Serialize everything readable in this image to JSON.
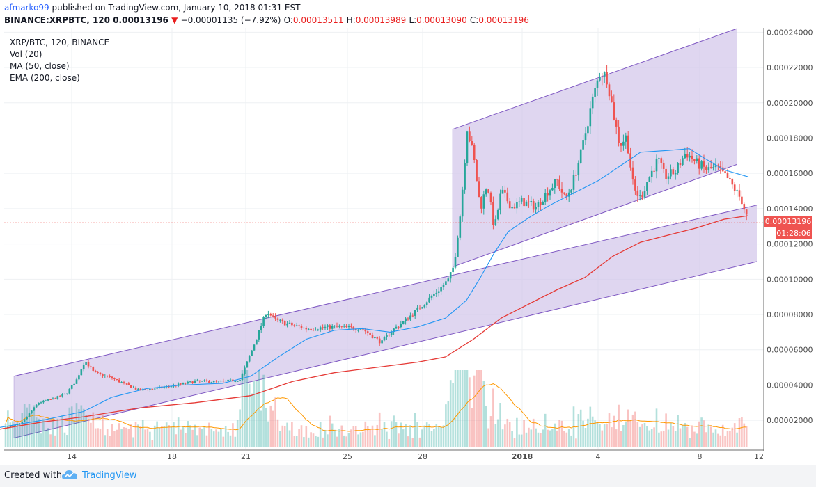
{
  "header": {
    "author": "afmarko99",
    "published_text": "published on TradingView.com, January 10, 2018 01:31 EST",
    "symbol": "BINANCE:XRPBTC, 120",
    "last": "0.00013196",
    "change_arrow": "▼",
    "change": "−0.00001135 (−7.92%)",
    "o_label": "O:",
    "o": "0.00013511",
    "h_label": "H:",
    "h": "0.00013989",
    "l_label": "L:",
    "l": "0.00013090",
    "c_label": "C:",
    "c": "0.00013196"
  },
  "legend": {
    "line1": "XRP/BTC, 120, BINANCE",
    "line2": "Vol (20)",
    "line3": "MA (50, close)",
    "line4": "EMA (200, close)"
  },
  "price_badge": {
    "value": "0.00013196",
    "countdown": "01:28:06"
  },
  "footer": {
    "created": "Created with",
    "brand": "TradingView"
  },
  "colors": {
    "up": "#26a69a",
    "down": "#ef5350",
    "ma": "#2196f3",
    "ema": "#e53935",
    "channel_fill": "#d1c4e9",
    "channel_line": "#7e57c2"
  },
  "chart_data": {
    "type": "candlestick",
    "symbol": "XRP/BTC",
    "interval": "120",
    "exchange": "BINANCE",
    "x_ticks": [
      "14",
      "18",
      "21",
      "25",
      "28",
      "2018",
      "4",
      "8",
      "12"
    ],
    "y_ticks": [
      "0.00002000",
      "0.00004000",
      "0.00006000",
      "0.00008000",
      "0.00010000",
      "0.00012000",
      "0.00014000",
      "0.00016000",
      "0.00018000",
      "0.00020000",
      "0.00022000",
      "0.00024000"
    ],
    "ylim": [
      3.5e-06,
      0.0002425
    ],
    "current_price": 0.00013196,
    "price_path_close": [
      [
        0,
        1.5e-05
      ],
      [
        30,
        1.8e-05
      ],
      [
        55,
        3e-05
      ],
      [
        75,
        3.2e-05
      ],
      [
        95,
        3.5e-05
      ],
      [
        110,
        4.3e-05
      ],
      [
        122,
        5.4e-05
      ],
      [
        135,
        4.7e-05
      ],
      [
        160,
        4.4e-05
      ],
      [
        200,
        3.7e-05
      ],
      [
        240,
        3.9e-05
      ],
      [
        280,
        4.2e-05
      ],
      [
        320,
        4.2e-05
      ],
      [
        345,
        4.3e-05
      ],
      [
        360,
        5.8e-05
      ],
      [
        383,
        8.2e-05
      ],
      [
        395,
        7.7e-05
      ],
      [
        410,
        7.5e-05
      ],
      [
        440,
        7.2e-05
      ],
      [
        480,
        7.3e-05
      ],
      [
        520,
        7.2e-05
      ],
      [
        548,
        6.4e-05
      ],
      [
        560,
        7e-05
      ],
      [
        580,
        7.6e-05
      ],
      [
        600,
        8.3e-05
      ],
      [
        625,
        9.2e-05
      ],
      [
        645,
        0.0001
      ],
      [
        652,
        0.000108
      ],
      [
        662,
        0.00014
      ],
      [
        671,
        0.000186
      ],
      [
        680,
        0.00017
      ],
      [
        690,
        0.00014
      ],
      [
        700,
        0.000155
      ],
      [
        710,
        0.000128
      ],
      [
        720,
        0.00015
      ],
      [
        735,
        0.000141
      ],
      [
        750,
        0.000144
      ],
      [
        770,
        0.000141
      ],
      [
        785,
        0.000149
      ],
      [
        800,
        0.000156
      ],
      [
        812,
        0.000145
      ],
      [
        822,
        0.000154
      ],
      [
        835,
        0.000172
      ],
      [
        850,
        0.0002
      ],
      [
        862,
        0.000218
      ],
      [
        872,
        0.000214
      ],
      [
        880,
        0.000196
      ],
      [
        890,
        0.000176
      ],
      [
        900,
        0.000181
      ],
      [
        910,
        0.000151
      ],
      [
        920,
        0.000146
      ],
      [
        930,
        0.000156
      ],
      [
        945,
        0.000168
      ],
      [
        955,
        0.000158
      ],
      [
        970,
        0.000161
      ],
      [
        985,
        0.000172
      ],
      [
        1000,
        0.000166
      ],
      [
        1015,
        0.000162
      ],
      [
        1030,
        0.000163
      ],
      [
        1045,
        0.000157
      ],
      [
        1055,
        0.000151
      ],
      [
        1065,
        0.000145
      ],
      [
        1075,
        0.000132
      ]
    ],
    "ma50_path": [
      [
        0,
        1.6e-05
      ],
      [
        60,
        2e-05
      ],
      [
        120,
        2.5e-05
      ],
      [
        160,
        3.3e-05
      ],
      [
        210,
        3.8e-05
      ],
      [
        260,
        4e-05
      ],
      [
        320,
        4.1e-05
      ],
      [
        360,
        4.5e-05
      ],
      [
        400,
        5.6e-05
      ],
      [
        440,
        6.6e-05
      ],
      [
        480,
        7.1e-05
      ],
      [
        520,
        7.2e-05
      ],
      [
        560,
        7e-05
      ],
      [
        600,
        7.3e-05
      ],
      [
        640,
        7.8e-05
      ],
      [
        670,
        8.8e-05
      ],
      [
        690,
        0.000101
      ],
      [
        710,
        0.000115
      ],
      [
        730,
        0.000127
      ],
      [
        760,
        0.000135
      ],
      [
        790,
        0.000142
      ],
      [
        830,
        0.00015
      ],
      [
        860,
        0.000156
      ],
      [
        890,
        0.000164
      ],
      [
        920,
        0.000172
      ],
      [
        960,
        0.000173
      ],
      [
        990,
        0.000174
      ],
      [
        1010,
        0.000169
      ],
      [
        1040,
        0.000162
      ],
      [
        1075,
        0.000158
      ]
    ],
    "ema200_path": [
      [
        0,
        1.5e-05
      ],
      [
        60,
        1.9e-05
      ],
      [
        120,
        2.2e-05
      ],
      [
        200,
        2.7e-05
      ],
      [
        280,
        3e-05
      ],
      [
        360,
        3.4e-05
      ],
      [
        420,
        4.2e-05
      ],
      [
        480,
        4.7e-05
      ],
      [
        540,
        5e-05
      ],
      [
        600,
        5.3e-05
      ],
      [
        640,
        5.6e-05
      ],
      [
        680,
        6.6e-05
      ],
      [
        720,
        7.8e-05
      ],
      [
        760,
        8.6e-05
      ],
      [
        800,
        9.4e-05
      ],
      [
        840,
        0.000101
      ],
      [
        880,
        0.000113
      ],
      [
        920,
        0.000121
      ],
      [
        960,
        0.000125
      ],
      [
        1000,
        0.000129
      ],
      [
        1040,
        0.000134
      ],
      [
        1075,
        0.000136
      ]
    ],
    "lower_channel": {
      "upper_line": [
        [
          20,
          4.5e-05
        ],
        [
          1087,
          0.000142
        ]
      ],
      "lower_line": [
        [
          20,
          1e-05
        ],
        [
          1087,
          0.00011
        ]
      ]
    },
    "upper_channel": {
      "upper_line": [
        [
          650,
          0.000185
        ],
        [
          1058,
          0.000242
        ]
      ],
      "lower_line": [
        [
          650,
          0.000107
        ],
        [
          1058,
          0.000165
        ]
      ]
    },
    "volume": {
      "note": "Vol (20) histogram with 20-period average (orange)",
      "max_bar": 2.2e-05
    }
  }
}
